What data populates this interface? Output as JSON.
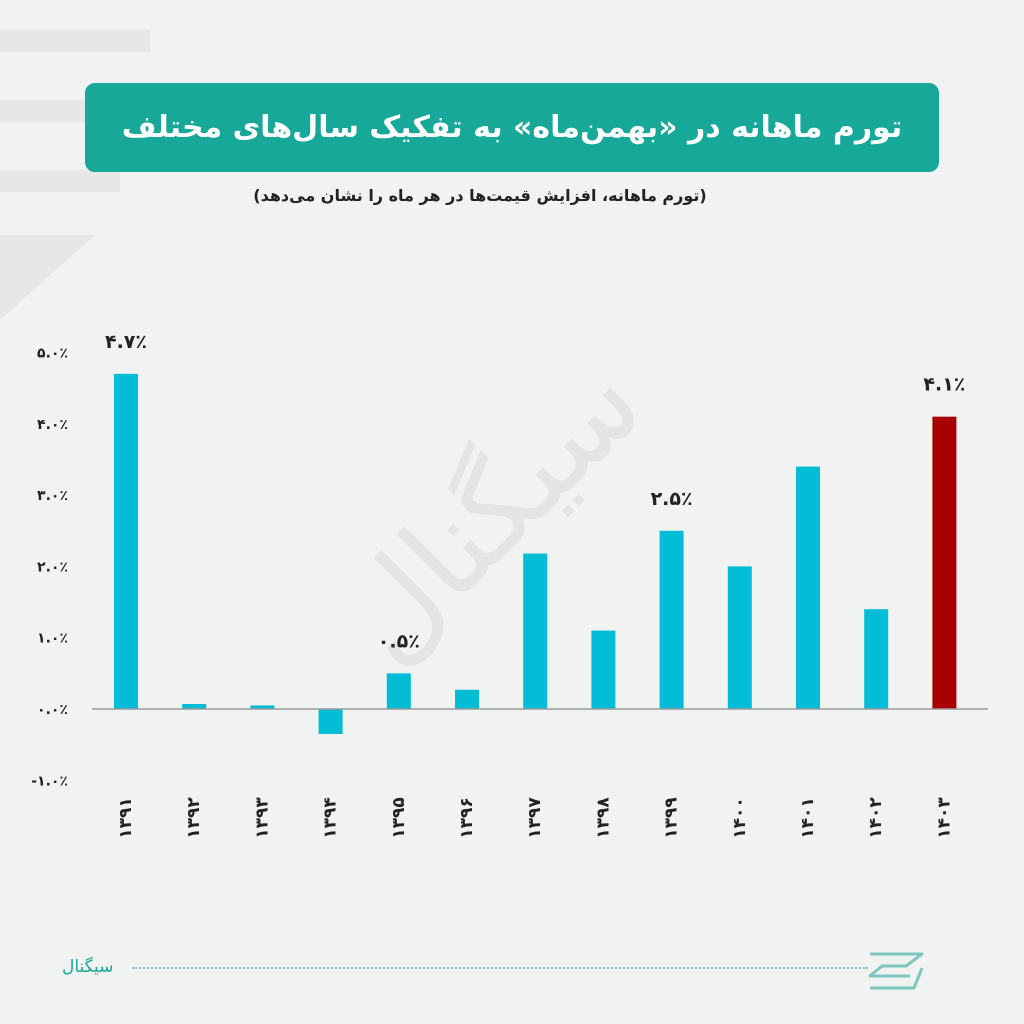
{
  "header": {
    "title": "تورم ماهانه در «بهمن‌ماه» به تفکیک سال‌های مختلف",
    "subtitle": "(تورم ماهانه، افزایش قیمت‌ها در هر ماه را نشان می‌دهد)"
  },
  "footer": {
    "brand": "سیگنال"
  },
  "watermark": "سیگنال",
  "colors": {
    "accent": "#17a899",
    "bar": "#03bcd6",
    "highlight": "#a80000",
    "axis": "#9a9a9a"
  },
  "chart_data": {
    "type": "bar",
    "categories": [
      "۱۳۹۱",
      "۱۳۹۲",
      "۱۳۹۳",
      "۱۳۹۴",
      "۱۳۹۵",
      "۱۳۹۶",
      "۱۳۹۷",
      "۱۳۹۸",
      "۱۳۹۹",
      "۱۴۰۰",
      "۱۴۰۱",
      "۱۴۰۲",
      "۱۴۰۳"
    ],
    "values": [
      4.7,
      0.07,
      0.05,
      -0.35,
      0.5,
      0.27,
      2.18,
      1.1,
      2.5,
      2.0,
      3.4,
      1.4,
      4.1
    ],
    "highlight_index": 12,
    "data_labels": [
      {
        "index": 0,
        "text": "۴.۷٪"
      },
      {
        "index": 4,
        "text": "۰.۵٪"
      },
      {
        "index": 8,
        "text": "۲.۵٪"
      },
      {
        "index": 12,
        "text": "۴.۱٪"
      }
    ],
    "yticks": [
      {
        "value": 5,
        "label": "۵.۰٪"
      },
      {
        "value": 4,
        "label": "۴.۰٪"
      },
      {
        "value": 3,
        "label": "۳.۰٪"
      },
      {
        "value": 2,
        "label": "۲.۰٪"
      },
      {
        "value": 1,
        "label": "۱.۰٪"
      },
      {
        "value": 0,
        "label": "۰.۰٪"
      },
      {
        "value": -1,
        "label": "-۱.۰٪"
      }
    ],
    "ylim": [
      -1,
      5
    ],
    "grid": false,
    "legend": "none"
  }
}
